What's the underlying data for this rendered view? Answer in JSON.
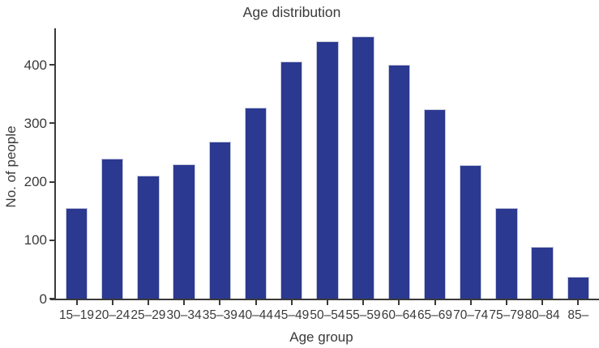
{
  "chart_data": {
    "type": "bar",
    "title": "Age distribution",
    "xlabel": "Age group",
    "ylabel": "No. of people",
    "categories": [
      "15–19",
      "20–24",
      "25–29",
      "30–34",
      "35–39",
      "40–44",
      "45–49",
      "50–54",
      "55–59",
      "60–64",
      "65–69",
      "70–74",
      "75–79",
      "80–84",
      "85–"
    ],
    "values": [
      155,
      240,
      210,
      230,
      268,
      326,
      405,
      440,
      448,
      400,
      324,
      229,
      155,
      88,
      37
    ],
    "yticks": [
      0,
      100,
      200,
      300,
      400
    ],
    "ylim": [
      0,
      462
    ],
    "grid": false,
    "legend_position": "none",
    "colors": {
      "bar_fill": "#2b3990",
      "bar_edge": "#c7cade",
      "axis": "#3a3a3a",
      "text": "#3a3a3a",
      "background": "#ffffff"
    }
  }
}
